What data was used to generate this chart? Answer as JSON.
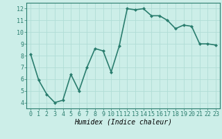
{
  "x": [
    0,
    1,
    2,
    3,
    4,
    5,
    6,
    7,
    8,
    9,
    10,
    11,
    12,
    13,
    14,
    15,
    16,
    17,
    18,
    19,
    20,
    21,
    22,
    23
  ],
  "y": [
    8.1,
    5.9,
    4.7,
    4.0,
    4.2,
    6.4,
    5.0,
    7.0,
    8.6,
    8.4,
    6.6,
    8.8,
    12.0,
    11.9,
    12.0,
    11.4,
    11.4,
    11.0,
    10.3,
    10.6,
    10.5,
    9.0,
    9.0,
    8.9
  ],
  "line_color": "#2a7d6e",
  "marker": "D",
  "marker_size": 2.0,
  "bg_color": "#cceee8",
  "grid_color": "#b0ddd6",
  "xlabel": "Humidex (Indice chaleur)",
  "xlim": [
    -0.5,
    23.5
  ],
  "ylim": [
    3.5,
    12.5
  ],
  "yticks": [
    4,
    5,
    6,
    7,
    8,
    9,
    10,
    11,
    12
  ],
  "xticks": [
    0,
    1,
    2,
    3,
    4,
    5,
    6,
    7,
    8,
    9,
    10,
    11,
    12,
    13,
    14,
    15,
    16,
    17,
    18,
    19,
    20,
    21,
    22,
    23
  ],
  "tick_fontsize": 6,
  "xlabel_fontsize": 7,
  "line_width": 1.2,
  "spine_color": "#2a7d6e"
}
